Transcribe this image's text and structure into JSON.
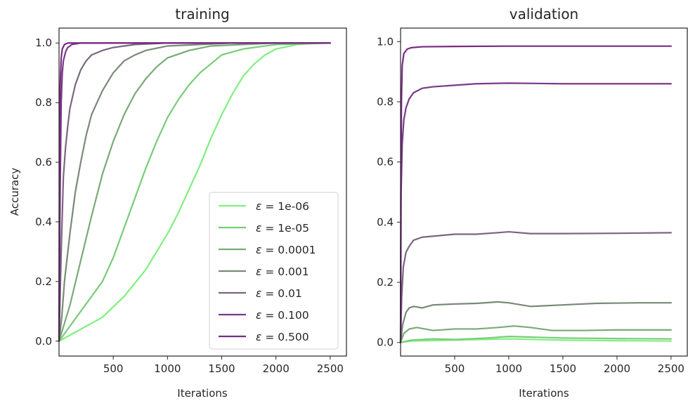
{
  "chart_data": [
    {
      "type": "line",
      "title": "training",
      "xlabel": "Iterations",
      "ylabel": "Accuracy",
      "xlim": [
        0,
        2650
      ],
      "ylim": [
        -0.05,
        1.05
      ],
      "xticks": [
        500,
        1000,
        1500,
        2000,
        2500
      ],
      "yticks": [
        0.0,
        0.2,
        0.4,
        0.6,
        0.8,
        1.0
      ],
      "xtick_labels": [
        "500",
        "1000",
        "1500",
        "2000",
        "2500"
      ],
      "ytick_labels": [
        "0.0",
        "0.2",
        "0.4",
        "0.6",
        "0.8",
        "1.0"
      ],
      "legend_position": "lower-right",
      "series": [
        {
          "name": "ε = 1e-06",
          "legend": {
            "prefix": "ε",
            "suffix": " = 1e-06"
          },
          "color": "#80ee80",
          "points": [
            [
              0,
              0.0
            ],
            [
              200,
              0.04
            ],
            [
              400,
              0.08
            ],
            [
              600,
              0.15
            ],
            [
              800,
              0.24
            ],
            [
              1000,
              0.36
            ],
            [
              1100,
              0.43
            ],
            [
              1200,
              0.51
            ],
            [
              1300,
              0.59
            ],
            [
              1400,
              0.68
            ],
            [
              1500,
              0.76
            ],
            [
              1600,
              0.83
            ],
            [
              1700,
              0.89
            ],
            [
              1800,
              0.93
            ],
            [
              1900,
              0.96
            ],
            [
              2000,
              0.98
            ],
            [
              2200,
              0.995
            ],
            [
              2400,
              1.0
            ],
            [
              2500,
              1.0
            ]
          ]
        },
        {
          "name": "ε = 1e-05",
          "legend": {
            "prefix": "ε",
            "suffix": " = 1e-05"
          },
          "color": "#77cc77",
          "points": [
            [
              0,
              0.0
            ],
            [
              100,
              0.05
            ],
            [
              200,
              0.1
            ],
            [
              400,
              0.2
            ],
            [
              500,
              0.28
            ],
            [
              600,
              0.38
            ],
            [
              700,
              0.48
            ],
            [
              800,
              0.58
            ],
            [
              900,
              0.67
            ],
            [
              1000,
              0.75
            ],
            [
              1100,
              0.81
            ],
            [
              1200,
              0.86
            ],
            [
              1300,
              0.9
            ],
            [
              1400,
              0.93
            ],
            [
              1500,
              0.96
            ],
            [
              1700,
              0.98
            ],
            [
              2000,
              0.995
            ],
            [
              2500,
              1.0
            ]
          ]
        },
        {
          "name": "ε = 0.0001",
          "legend": {
            "prefix": "ε",
            "suffix": " = 0.0001"
          },
          "color": "#78aa78",
          "points": [
            [
              0,
              0.0
            ],
            [
              50,
              0.06
            ],
            [
              100,
              0.12
            ],
            [
              200,
              0.27
            ],
            [
              300,
              0.42
            ],
            [
              400,
              0.56
            ],
            [
              500,
              0.67
            ],
            [
              600,
              0.76
            ],
            [
              700,
              0.83
            ],
            [
              800,
              0.88
            ],
            [
              900,
              0.92
            ],
            [
              1000,
              0.95
            ],
            [
              1200,
              0.975
            ],
            [
              1400,
              0.99
            ],
            [
              1700,
              0.995
            ],
            [
              2000,
              1.0
            ],
            [
              2500,
              1.0
            ]
          ]
        },
        {
          "name": "ε = 0.001",
          "legend": {
            "prefix": "ε",
            "suffix": " = 0.001"
          },
          "color": "#788a78",
          "points": [
            [
              0,
              0.0
            ],
            [
              25,
              0.08
            ],
            [
              50,
              0.2
            ],
            [
              100,
              0.36
            ],
            [
              150,
              0.5
            ],
            [
              200,
              0.6
            ],
            [
              250,
              0.69
            ],
            [
              300,
              0.76
            ],
            [
              400,
              0.84
            ],
            [
              500,
              0.9
            ],
            [
              600,
              0.94
            ],
            [
              700,
              0.96
            ],
            [
              800,
              0.975
            ],
            [
              1000,
              0.99
            ],
            [
              1300,
              0.995
            ],
            [
              1600,
              1.0
            ],
            [
              2500,
              1.0
            ]
          ]
        },
        {
          "name": "ε = 0.01",
          "legend": {
            "prefix": "ε",
            "suffix": " = 0.01"
          },
          "color": "#7a6680",
          "points": [
            [
              0,
              0.0
            ],
            [
              20,
              0.3
            ],
            [
              40,
              0.55
            ],
            [
              60,
              0.65
            ],
            [
              80,
              0.72
            ],
            [
              100,
              0.78
            ],
            [
              150,
              0.86
            ],
            [
              200,
              0.91
            ],
            [
              250,
              0.94
            ],
            [
              300,
              0.96
            ],
            [
              400,
              0.975
            ],
            [
              500,
              0.985
            ],
            [
              700,
              0.995
            ],
            [
              1000,
              1.0
            ],
            [
              2500,
              1.0
            ]
          ]
        },
        {
          "name": "ε = 0.100",
          "legend": {
            "prefix": "ε",
            "suffix": " = 0.100"
          },
          "color": "#783a88",
          "points": [
            [
              0,
              0.0
            ],
            [
              10,
              0.5
            ],
            [
              20,
              0.8
            ],
            [
              30,
              0.9
            ],
            [
              40,
              0.94
            ],
            [
              60,
              0.97
            ],
            [
              80,
              0.985
            ],
            [
              120,
              0.995
            ],
            [
              200,
              1.0
            ],
            [
              2500,
              1.0
            ]
          ]
        },
        {
          "name": "ε = 0.500",
          "legend": {
            "prefix": "ε",
            "suffix": " = 0.500"
          },
          "color": "#7a2a82",
          "points": [
            [
              0,
              0.0
            ],
            [
              5,
              0.6
            ],
            [
              10,
              0.85
            ],
            [
              20,
              0.95
            ],
            [
              30,
              0.98
            ],
            [
              50,
              0.995
            ],
            [
              80,
              1.0
            ],
            [
              2500,
              1.0
            ]
          ]
        }
      ]
    },
    {
      "type": "line",
      "title": "validation",
      "xlabel": "Iterations",
      "ylabel": "",
      "xlim": [
        0,
        2650
      ],
      "ylim": [
        -0.045,
        1.045
      ],
      "xticks": [
        500,
        1000,
        1500,
        2000,
        2500
      ],
      "yticks": [
        0.0,
        0.2,
        0.4,
        0.6,
        0.8,
        1.0
      ],
      "xtick_labels": [
        "500",
        "1000",
        "1500",
        "2000",
        "2500"
      ],
      "ytick_labels": [
        "0.0",
        "0.2",
        "0.4",
        "0.6",
        "0.8",
        "1.0"
      ],
      "series": [
        {
          "name": "ε = 1e-06",
          "color": "#80ee80",
          "points": [
            [
              0,
              0.0
            ],
            [
              100,
              0.005
            ],
            [
              500,
              0.008
            ],
            [
              1000,
              0.012
            ],
            [
              1500,
              0.008
            ],
            [
              2000,
              0.006
            ],
            [
              2500,
              0.005
            ]
          ]
        },
        {
          "name": "ε = 1e-05",
          "color": "#77cc77",
          "points": [
            [
              0,
              0.0
            ],
            [
              100,
              0.008
            ],
            [
              300,
              0.012
            ],
            [
              500,
              0.01
            ],
            [
              800,
              0.015
            ],
            [
              1000,
              0.02
            ],
            [
              1200,
              0.018
            ],
            [
              1500,
              0.015
            ],
            [
              2000,
              0.013
            ],
            [
              2500,
              0.012
            ]
          ]
        },
        {
          "name": "ε = 0.0001",
          "color": "#78aa78",
          "points": [
            [
              0,
              0.0
            ],
            [
              30,
              0.03
            ],
            [
              80,
              0.045
            ],
            [
              150,
              0.05
            ],
            [
              300,
              0.04
            ],
            [
              500,
              0.045
            ],
            [
              700,
              0.045
            ],
            [
              900,
              0.05
            ],
            [
              1050,
              0.055
            ],
            [
              1200,
              0.05
            ],
            [
              1400,
              0.04
            ],
            [
              1700,
              0.04
            ],
            [
              2000,
              0.042
            ],
            [
              2500,
              0.042
            ]
          ]
        },
        {
          "name": "ε = 0.001",
          "color": "#788a78",
          "points": [
            [
              0,
              0.0
            ],
            [
              20,
              0.06
            ],
            [
              50,
              0.1
            ],
            [
              80,
              0.115
            ],
            [
              120,
              0.12
            ],
            [
              200,
              0.115
            ],
            [
              300,
              0.125
            ],
            [
              500,
              0.128
            ],
            [
              700,
              0.13
            ],
            [
              900,
              0.135
            ],
            [
              1000,
              0.132
            ],
            [
              1200,
              0.12
            ],
            [
              1500,
              0.125
            ],
            [
              1800,
              0.13
            ],
            [
              2200,
              0.132
            ],
            [
              2500,
              0.132
            ]
          ]
        },
        {
          "name": "ε = 0.01",
          "color": "#7a6680",
          "points": [
            [
              0,
              0.0
            ],
            [
              10,
              0.15
            ],
            [
              25,
              0.25
            ],
            [
              50,
              0.3
            ],
            [
              80,
              0.32
            ],
            [
              120,
              0.34
            ],
            [
              200,
              0.35
            ],
            [
              350,
              0.355
            ],
            [
              500,
              0.36
            ],
            [
              700,
              0.36
            ],
            [
              900,
              0.365
            ],
            [
              1000,
              0.368
            ],
            [
              1200,
              0.362
            ],
            [
              1500,
              0.362
            ],
            [
              2000,
              0.363
            ],
            [
              2500,
              0.365
            ]
          ]
        },
        {
          "name": "ε = 0.100",
          "color": "#783a88",
          "points": [
            [
              0,
              0.0
            ],
            [
              5,
              0.5
            ],
            [
              15,
              0.66
            ],
            [
              30,
              0.74
            ],
            [
              50,
              0.78
            ],
            [
              80,
              0.81
            ],
            [
              120,
              0.83
            ],
            [
              200,
              0.845
            ],
            [
              300,
              0.85
            ],
            [
              500,
              0.855
            ],
            [
              700,
              0.86
            ],
            [
              1000,
              0.862
            ],
            [
              1500,
              0.86
            ],
            [
              2000,
              0.86
            ],
            [
              2500,
              0.86
            ]
          ]
        },
        {
          "name": "ε = 0.500",
          "color": "#7a2a82",
          "points": [
            [
              0,
              0.0
            ],
            [
              3,
              0.5
            ],
            [
              8,
              0.8
            ],
            [
              15,
              0.92
            ],
            [
              30,
              0.96
            ],
            [
              60,
              0.975
            ],
            [
              100,
              0.98
            ],
            [
              200,
              0.983
            ],
            [
              500,
              0.984
            ],
            [
              1000,
              0.985
            ],
            [
              2500,
              0.985
            ]
          ]
        }
      ]
    }
  ]
}
